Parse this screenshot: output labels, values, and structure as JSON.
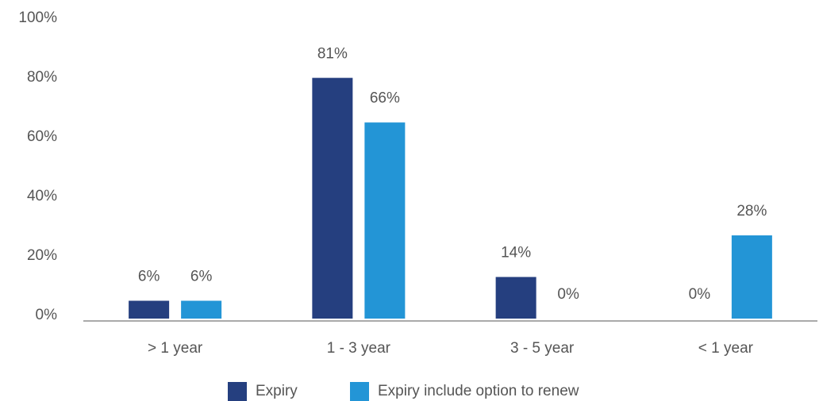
{
  "chart_data": {
    "type": "bar",
    "categories": [
      "> 1 year",
      "1 - 3 year",
      "3 - 5 year",
      "< 1 year"
    ],
    "series": [
      {
        "name": "Expiry",
        "color": "#253f7f",
        "values": [
          6,
          81,
          14,
          0
        ],
        "value_labels": [
          "6%",
          "81%",
          "14%",
          "0%"
        ]
      },
      {
        "name": "Expiry include option to renew",
        "color": "#2395d6",
        "values": [
          6,
          66,
          0,
          28
        ],
        "value_labels": [
          "6%",
          "66%",
          "0%",
          "28%"
        ]
      }
    ],
    "ylim": [
      0,
      100
    ],
    "yticks": [
      {
        "value": 0,
        "label": "0%"
      },
      {
        "value": 20,
        "label": "20%"
      },
      {
        "value": 40,
        "label": "40%"
      },
      {
        "value": 60,
        "label": "60%"
      },
      {
        "value": 80,
        "label": "80%"
      },
      {
        "value": 100,
        "label": "100%"
      }
    ],
    "grid": false,
    "legend": "bottom"
  }
}
